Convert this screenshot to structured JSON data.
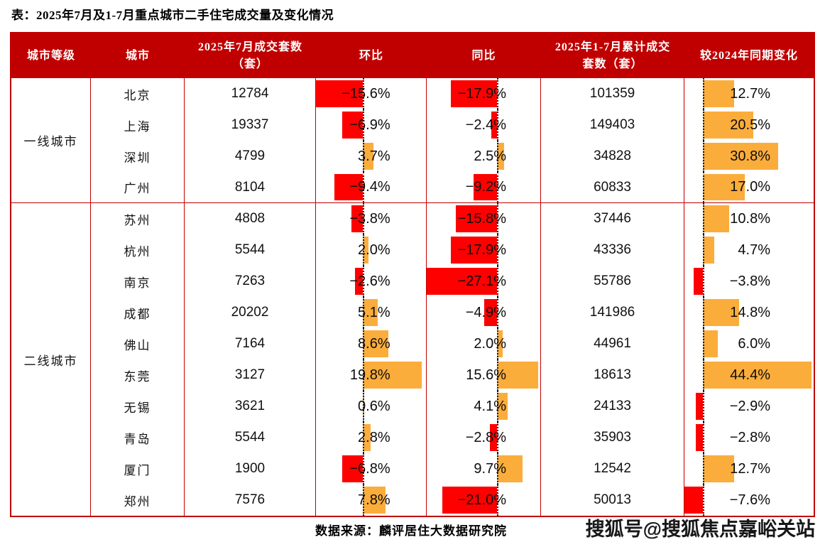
{
  "title": "表：2025年7月及1-7月重点城市二手住宅成交量及变化情况",
  "source": "数据来源：麟评居住大数据研究院",
  "watermark": "搜狐号@搜狐焦点嘉峪关站",
  "colors": {
    "header_bg": "#C00000",
    "border": "#C00000",
    "negative_bar": "#FE0000",
    "positive_bar": "#FBAD3B",
    "header_text": "#FFFFFF",
    "body_text": "#111111"
  },
  "table": {
    "columns": [
      {
        "key": "tier",
        "label": "城市等级"
      },
      {
        "key": "city",
        "label": "城市"
      },
      {
        "key": "jul_volume",
        "label": "2025年7月成交套数（套）"
      },
      {
        "key": "mom",
        "label": "环比"
      },
      {
        "key": "yoy",
        "label": "同比"
      },
      {
        "key": "cum_volume",
        "label": "2025年1-7月累计成交套数（套）"
      },
      {
        "key": "vs_2024",
        "label": "较2024年同期变化"
      }
    ],
    "groups": [
      {
        "tier": "一线城市",
        "rows": [
          {
            "city": "北京",
            "jul": "12784",
            "mom": -15.6,
            "yoy": -17.9,
            "cum": "101359",
            "vs": 12.7
          },
          {
            "city": "上海",
            "jul": "19337",
            "mom": -6.9,
            "yoy": -2.4,
            "cum": "149403",
            "vs": 20.5
          },
          {
            "city": "深圳",
            "jul": "4799",
            "mom": 3.7,
            "yoy": 2.5,
            "cum": "34828",
            "vs": 30.8
          },
          {
            "city": "广州",
            "jul": "8104",
            "mom": -9.4,
            "yoy": -9.2,
            "cum": "60833",
            "vs": 17.0
          }
        ]
      },
      {
        "tier": "二线城市",
        "rows": [
          {
            "city": "苏州",
            "jul": "4808",
            "mom": -3.8,
            "yoy": -15.8,
            "cum": "37446",
            "vs": 10.8
          },
          {
            "city": "杭州",
            "jul": "5544",
            "mom": 2.0,
            "yoy": -17.9,
            "cum": "43336",
            "vs": 4.7
          },
          {
            "city": "南京",
            "jul": "7263",
            "mom": -2.6,
            "yoy": -27.1,
            "cum": "55786",
            "vs": -3.8
          },
          {
            "city": "成都",
            "jul": "20202",
            "mom": 5.1,
            "yoy": -4.9,
            "cum": "141986",
            "vs": 14.8
          },
          {
            "city": "佛山",
            "jul": "7164",
            "mom": 8.6,
            "yoy": 2.0,
            "cum": "44961",
            "vs": 6.0
          },
          {
            "city": "东莞",
            "jul": "3127",
            "mom": 19.8,
            "yoy": 15.6,
            "cum": "18613",
            "vs": 44.4
          },
          {
            "city": "无锡",
            "jul": "3621",
            "mom": 0.6,
            "yoy": 4.1,
            "cum": "24133",
            "vs": -2.9
          },
          {
            "city": "青岛",
            "jul": "5544",
            "mom": 2.8,
            "yoy": -2.8,
            "cum": "35903",
            "vs": -2.8
          },
          {
            "city": "厦门",
            "jul": "1900",
            "mom": -6.8,
            "yoy": 9.7,
            "cum": "12542",
            "vs": 12.7
          },
          {
            "city": "郑州",
            "jul": "7576",
            "mom": 7.8,
            "yoy": -21.0,
            "cum": "50013",
            "vs": -7.6
          }
        ]
      }
    ]
  },
  "chart_data": {
    "type": "table",
    "title": "表：2025年7月及1-7月重点城市二手住宅成交量及变化情况",
    "columns": [
      "城市等级",
      "城市",
      "2025年7月成交套数（套）",
      "环比",
      "同比",
      "2025年1-7月累计成交套数（套）",
      "较2024年同期变化"
    ],
    "percent_unit": "%",
    "bar_column_style": "环比、同比、较2024年同期变化 rendered as in-cell bars from dotted zero baseline; negative = red (#FE0000) leftward, positive = orange (#FBAD3B) rightward",
    "rows": [
      [
        "一线城市",
        "北京",
        12784,
        -15.6,
        -17.9,
        101359,
        12.7
      ],
      [
        "一线城市",
        "上海",
        19337,
        -6.9,
        -2.4,
        149403,
        20.5
      ],
      [
        "一线城市",
        "深圳",
        4799,
        3.7,
        2.5,
        34828,
        30.8
      ],
      [
        "一线城市",
        "广州",
        8104,
        -9.4,
        -9.2,
        60833,
        17.0
      ],
      [
        "二线城市",
        "苏州",
        4808,
        -3.8,
        -15.8,
        37446,
        10.8
      ],
      [
        "二线城市",
        "杭州",
        5544,
        2.0,
        -17.9,
        43336,
        4.7
      ],
      [
        "二线城市",
        "南京",
        7263,
        -2.6,
        -27.1,
        55786,
        -3.8
      ],
      [
        "二线城市",
        "成都",
        20202,
        5.1,
        -4.9,
        141986,
        14.8
      ],
      [
        "二线城市",
        "佛山",
        7164,
        8.6,
        2.0,
        44961,
        6.0
      ],
      [
        "二线城市",
        "东莞",
        3127,
        19.8,
        15.6,
        18613,
        44.4
      ],
      [
        "二线城市",
        "无锡",
        3621,
        0.6,
        4.1,
        24133,
        -2.9
      ],
      [
        "二线城市",
        "青岛",
        5544,
        2.8,
        -2.8,
        35903,
        -2.8
      ],
      [
        "二线城市",
        "厦门",
        1900,
        -6.8,
        9.7,
        12542,
        12.7
      ],
      [
        "二线城市",
        "郑州",
        7576,
        7.8,
        -21.0,
        50013,
        -7.6
      ]
    ],
    "source": "数据来源：麟评居住大数据研究院"
  }
}
